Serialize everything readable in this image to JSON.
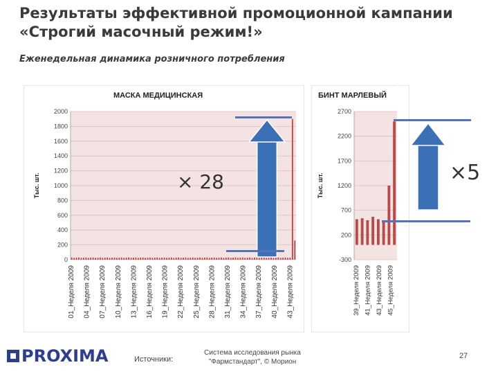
{
  "header": {
    "title": "Результаты эффективной промоционной кампании «Строгий масочный режим!»",
    "subtitle": "Еженедельная динамика розничного потребления"
  },
  "multipliers": {
    "left": "× 28",
    "right": "×5"
  },
  "footer": {
    "logo": "PROXIMA",
    "sources_label": "Источники:",
    "sources_text": "Система исследования рынка \"Фармстандарт\", © Морион",
    "page": "27"
  },
  "colors": {
    "bar": "#b94a48",
    "plot_bg": "#f3e3e3",
    "grid": "#e0bcbc",
    "arrow": "#3b6fb6",
    "marker": "#5672b8"
  },
  "chart_data": [
    {
      "type": "bar",
      "title": "МАСКА МЕДИЦИНСКАЯ",
      "ylabel": "Тыс. шт.",
      "ylim": [
        0,
        2000
      ],
      "yticks": [
        0,
        200,
        400,
        600,
        800,
        1000,
        1200,
        1400,
        1600,
        1800,
        2000
      ],
      "tick_labels": [
        "01_Неделя 2009",
        "04_Неделя 2009",
        "07_Неделя 2009",
        "10_Неделя 2009",
        "13_Неделя 2009",
        "16_Неделя 2009",
        "19_Неделя 2009",
        "22_Неделя 2009",
        "25_Неделя 2009",
        "28_Неделя 2009",
        "31_Неделя 2009",
        "34_Неделя 2009",
        "37_Неделя 2009",
        "40_Неделя 2009",
        "43_Неделя 2009"
      ],
      "values": [
        30,
        25,
        28,
        30,
        25,
        28,
        30,
        25,
        28,
        30,
        25,
        28,
        30,
        25,
        28,
        30,
        25,
        28,
        30,
        25,
        28,
        30,
        25,
        28,
        30,
        25,
        28,
        30,
        25,
        28,
        30,
        25,
        28,
        30,
        25,
        28,
        30,
        25,
        28,
        30,
        25,
        28,
        30,
        25,
        28,
        30,
        25,
        28,
        30,
        25,
        28,
        30,
        25,
        28,
        30,
        25,
        28,
        30,
        25,
        28,
        30,
        25,
        28,
        30,
        25,
        28,
        30,
        25,
        28,
        30,
        25,
        28,
        30,
        25,
        28,
        30,
        25,
        28,
        30,
        25,
        28,
        30,
        25,
        28,
        30,
        25,
        28,
        30,
        25,
        28,
        30,
        25,
        28,
        1900,
        260
      ]
    },
    {
      "type": "bar",
      "title": "БИНТ МАРЛЕВЫЙ",
      "ylabel": "Тыс. шт.",
      "ylim": [
        -300,
        2700
      ],
      "yticks": [
        -300,
        200,
        700,
        1200,
        1700,
        2200,
        2700
      ],
      "tick_labels": [
        "39_Неделя 2009",
        "41_Неделя 2009",
        "43_Неделя 2009",
        "45_Неделя 2009"
      ],
      "values": [
        520,
        540,
        500,
        570,
        520,
        480,
        1200,
        2500
      ]
    }
  ]
}
